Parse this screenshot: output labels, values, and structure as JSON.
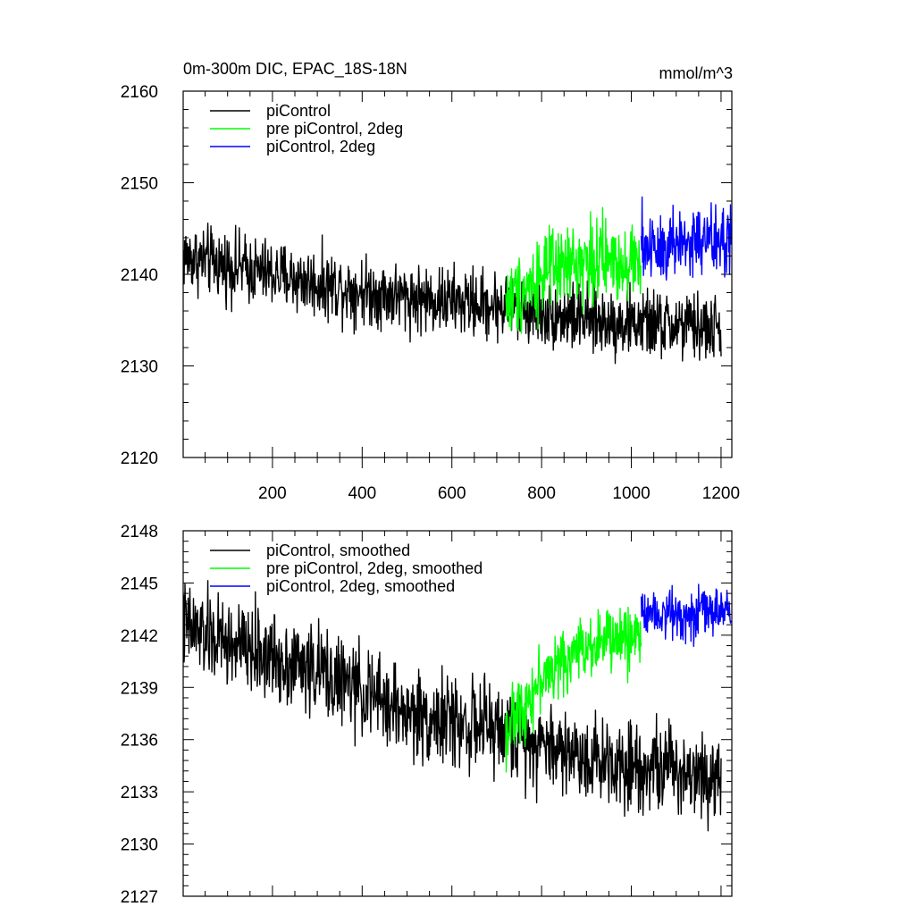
{
  "figure": {
    "title_left": "0m-300m DIC, EPAC_18S-18N",
    "title_right": "mmol/m^3"
  },
  "chart_data": [
    {
      "type": "line",
      "xlim": [
        1,
        1224
      ],
      "ylim": [
        2120,
        2160
      ],
      "xticks": [
        200,
        400,
        600,
        800,
        1000,
        1200
      ],
      "yticks": [
        2120,
        2130,
        2140,
        2150,
        2160
      ],
      "show_x_labels": true,
      "legend_position": "top-left",
      "series": [
        {
          "name": "piControl",
          "color": "#000000",
          "x_range": [
            1,
            1200
          ],
          "trend_points": [
            [
              1,
              2142
            ],
            [
              100,
              2141
            ],
            [
              300,
              2139
            ],
            [
              500,
              2137.5
            ],
            [
              720,
              2136.5
            ],
            [
              900,
              2135
            ],
            [
              1200,
              2134
            ]
          ],
          "noise_amp": 3.2,
          "smooth_window": 1
        },
        {
          "name": "pre piControl, 2deg",
          "color": "#00ff00",
          "x_range": [
            720,
            1022
          ],
          "trend_points": [
            [
              720,
              2137
            ],
            [
              800,
              2140
            ],
            [
              900,
              2141.5
            ],
            [
              1022,
              2141.5
            ]
          ],
          "noise_amp": 3.8,
          "smooth_window": 1
        },
        {
          "name": "piControl, 2deg",
          "color": "#0000ff",
          "x_range": [
            1022,
            1222
          ],
          "trend_points": [
            [
              1022,
              2143
            ],
            [
              1120,
              2143.5
            ],
            [
              1222,
              2143.5
            ]
          ],
          "noise_amp": 3.8,
          "smooth_window": 1
        }
      ]
    },
    {
      "type": "line",
      "xlim": [
        1,
        1224
      ],
      "ylim": [
        2127,
        2148
      ],
      "xticks": [
        200,
        400,
        600,
        800,
        1000,
        1200
      ],
      "yticks": [
        2127,
        2130,
        2133,
        2136,
        2139,
        2142,
        2145,
        2148
      ],
      "show_x_labels": false,
      "legend_position": "top-left",
      "series": [
        {
          "name": "piControl, smoothed",
          "color": "#000000",
          "x_range": [
            1,
            1200
          ],
          "trend_points": [
            [
              1,
              2142.5
            ],
            [
              100,
              2141.5
            ],
            [
              300,
              2140
            ],
            [
              500,
              2137.5
            ],
            [
              720,
              2136.5
            ],
            [
              900,
              2135
            ],
            [
              1200,
              2134
            ]
          ],
          "noise_amp": 2.2,
          "smooth_window": 1
        },
        {
          "name": "pre piControl, 2deg, smoothed",
          "color": "#00ff00",
          "x_range": [
            720,
            1022
          ],
          "trend_points": [
            [
              720,
              2136.5
            ],
            [
              800,
              2139.5
            ],
            [
              900,
              2141.5
            ],
            [
              1022,
              2142
            ]
          ],
          "noise_amp": 1.6,
          "smooth_window": 1
        },
        {
          "name": "piControl, 2deg, smoothed",
          "color": "#0000ff",
          "x_range": [
            1022,
            1222
          ],
          "trend_points": [
            [
              1022,
              2143.5
            ],
            [
              1120,
              2143.2
            ],
            [
              1222,
              2143.5
            ]
          ],
          "noise_amp": 1.2,
          "smooth_window": 1
        }
      ]
    }
  ]
}
